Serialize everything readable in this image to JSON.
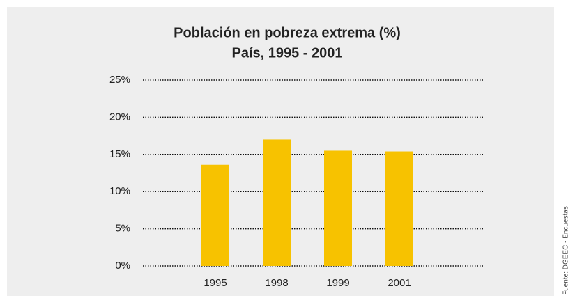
{
  "chart_data": {
    "type": "bar",
    "title": "Población en pobreza extrema (%)",
    "subtitle": "País, 1995 - 2001",
    "source": "Fuente: DGEEC - Encuestas",
    "categories": [
      "1995",
      "1998",
      "1999",
      "2001"
    ],
    "values": [
      13.6,
      17.0,
      15.5,
      15.4
    ],
    "color": "#f7c200",
    "ylim": [
      0,
      25
    ],
    "yticks": [
      {
        "value": 0,
        "label": "0%"
      },
      {
        "value": 5,
        "label": "5%"
      },
      {
        "value": 10,
        "label": "10%"
      },
      {
        "value": 15,
        "label": "15%"
      },
      {
        "value": 20,
        "label": "20%"
      },
      {
        "value": 25,
        "label": "25%"
      }
    ],
    "grid": true
  }
}
